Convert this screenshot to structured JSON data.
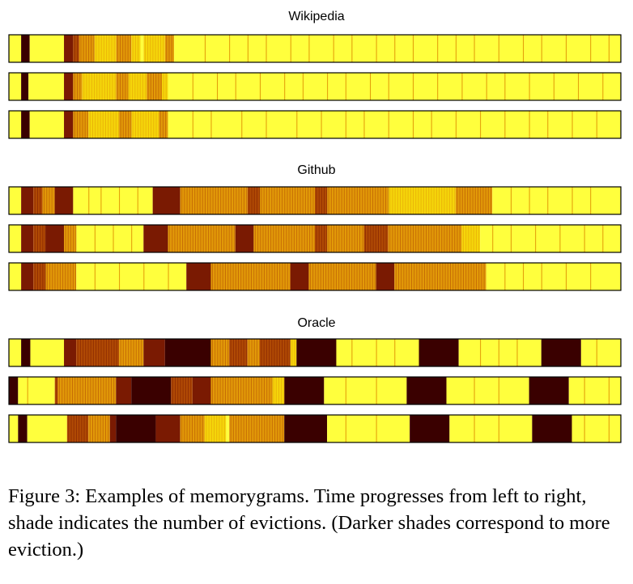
{
  "chart_data": {
    "type": "heatmap",
    "description_scale": "darker = more evictions",
    "color_scale": [
      "#ffff3d",
      "#f5d60a",
      "#e29a08",
      "#b04a04",
      "#7a1a02",
      "#3a0000"
    ],
    "groups": [
      {
        "title": "Wikipedia",
        "rows": [
          {
            "segments": [
              [
                0,
                0.02,
                0
              ],
              [
                0.02,
                0.034,
                5
              ],
              [
                0.034,
                0.09,
                0
              ],
              [
                0.09,
                0.105,
                4
              ],
              [
                0.105,
                0.115,
                3
              ],
              [
                0.115,
                0.14,
                2
              ],
              [
                0.14,
                0.175,
                1
              ],
              [
                0.175,
                0.2,
                2
              ],
              [
                0.2,
                0.215,
                1
              ],
              [
                0.215,
                0.22,
                0
              ],
              [
                0.22,
                0.255,
                1
              ],
              [
                0.255,
                0.27,
                2
              ],
              [
                0.27,
                0.27,
                0
              ],
              [
                0.27,
                1,
                0
              ]
            ],
            "stripes": [
              0.32,
              0.36,
              0.39,
              0.42,
              0.46,
              0.49,
              0.53,
              0.56,
              0.6,
              0.63,
              0.66,
              0.7,
              0.73,
              0.76,
              0.8,
              0.84,
              0.87,
              0.91,
              0.95,
              0.98
            ]
          },
          {
            "segments": [
              [
                0,
                0.02,
                0
              ],
              [
                0.02,
                0.032,
                5
              ],
              [
                0.032,
                0.09,
                0
              ],
              [
                0.09,
                0.105,
                4
              ],
              [
                0.105,
                0.12,
                2
              ],
              [
                0.12,
                0.175,
                1
              ],
              [
                0.175,
                0.195,
                2
              ],
              [
                0.195,
                0.225,
                1
              ],
              [
                0.225,
                0.25,
                2
              ],
              [
                0.25,
                0.26,
                1
              ],
              [
                0.26,
                1,
                0
              ]
            ],
            "stripes": [
              0.3,
              0.34,
              0.37,
              0.41,
              0.45,
              0.48,
              0.52,
              0.55,
              0.59,
              0.62,
              0.66,
              0.7,
              0.74,
              0.78,
              0.81,
              0.85,
              0.89,
              0.93,
              0.97
            ]
          },
          {
            "segments": [
              [
                0,
                0.02,
                0
              ],
              [
                0.02,
                0.034,
                5
              ],
              [
                0.034,
                0.09,
                0
              ],
              [
                0.09,
                0.105,
                4
              ],
              [
                0.105,
                0.13,
                2
              ],
              [
                0.13,
                0.18,
                1
              ],
              [
                0.18,
                0.2,
                2
              ],
              [
                0.2,
                0.245,
                1
              ],
              [
                0.245,
                0.26,
                2
              ],
              [
                0.26,
                1,
                0
              ]
            ],
            "stripes": [
              0.3,
              0.33,
              0.38,
              0.42,
              0.47,
              0.51,
              0.55,
              0.58,
              0.62,
              0.66,
              0.69,
              0.73,
              0.77,
              0.81,
              0.85,
              0.88,
              0.92,
              0.96
            ]
          }
        ]
      },
      {
        "title": "Github",
        "rows": [
          {
            "segments": [
              [
                0,
                0.02,
                0
              ],
              [
                0.02,
                0.04,
                4
              ],
              [
                0.04,
                0.055,
                3
              ],
              [
                0.055,
                0.075,
                2
              ],
              [
                0.075,
                0.105,
                4
              ],
              [
                0.105,
                0.235,
                0
              ],
              [
                0.235,
                0.28,
                4
              ],
              [
                0.28,
                0.39,
                2
              ],
              [
                0.39,
                0.41,
                3
              ],
              [
                0.41,
                0.5,
                2
              ],
              [
                0.5,
                0.52,
                3
              ],
              [
                0.52,
                0.62,
                2
              ],
              [
                0.62,
                0.73,
                1
              ],
              [
                0.73,
                0.79,
                2
              ],
              [
                0.79,
                1,
                0
              ]
            ],
            "stripes": [
              0.13,
              0.15,
              0.18,
              0.21,
              0.82,
              0.85,
              0.88,
              0.92,
              0.95
            ]
          },
          {
            "segments": [
              [
                0,
                0.02,
                0
              ],
              [
                0.02,
                0.04,
                4
              ],
              [
                0.04,
                0.06,
                3
              ],
              [
                0.06,
                0.09,
                4
              ],
              [
                0.09,
                0.11,
                2
              ],
              [
                0.11,
                0.22,
                0
              ],
              [
                0.22,
                0.26,
                4
              ],
              [
                0.26,
                0.37,
                2
              ],
              [
                0.37,
                0.4,
                4
              ],
              [
                0.4,
                0.5,
                2
              ],
              [
                0.5,
                0.52,
                3
              ],
              [
                0.52,
                0.58,
                2
              ],
              [
                0.58,
                0.62,
                3
              ],
              [
                0.62,
                0.74,
                2
              ],
              [
                0.74,
                0.77,
                1
              ],
              [
                0.77,
                1,
                0
              ]
            ],
            "stripes": [
              0.14,
              0.17,
              0.2,
              0.79,
              0.82,
              0.86,
              0.9,
              0.94,
              0.97
            ]
          },
          {
            "segments": [
              [
                0,
                0.02,
                0
              ],
              [
                0.02,
                0.04,
                4
              ],
              [
                0.04,
                0.06,
                3
              ],
              [
                0.06,
                0.11,
                2
              ],
              [
                0.11,
                0.29,
                0
              ],
              [
                0.29,
                0.33,
                4
              ],
              [
                0.33,
                0.46,
                2
              ],
              [
                0.46,
                0.49,
                4
              ],
              [
                0.49,
                0.6,
                2
              ],
              [
                0.6,
                0.63,
                4
              ],
              [
                0.63,
                0.78,
                2
              ],
              [
                0.78,
                1,
                0
              ]
            ],
            "stripes": [
              0.14,
              0.18,
              0.22,
              0.26,
              0.81,
              0.84,
              0.87,
              0.91,
              0.95
            ]
          }
        ]
      },
      {
        "title": "Oracle",
        "rows": [
          {
            "segments": [
              [
                0,
                0.02,
                0
              ],
              [
                0.02,
                0.035,
                5
              ],
              [
                0.035,
                0.09,
                0
              ],
              [
                0.09,
                0.11,
                4
              ],
              [
                0.11,
                0.18,
                3
              ],
              [
                0.18,
                0.22,
                2
              ],
              [
                0.22,
                0.255,
                4
              ],
              [
                0.255,
                0.33,
                5
              ],
              [
                0.33,
                0.36,
                2
              ],
              [
                0.36,
                0.39,
                3
              ],
              [
                0.39,
                0.41,
                2
              ],
              [
                0.41,
                0.46,
                3
              ],
              [
                0.46,
                0.47,
                1
              ],
              [
                0.47,
                0.535,
                5
              ],
              [
                0.535,
                0.67,
                0
              ],
              [
                0.67,
                0.735,
                5
              ],
              [
                0.735,
                0.87,
                0
              ],
              [
                0.87,
                0.935,
                5
              ],
              [
                0.935,
                1,
                0
              ]
            ],
            "stripes": [
              0.56,
              0.6,
              0.63,
              0.77,
              0.8,
              0.83,
              0.96
            ]
          },
          {
            "segments": [
              [
                0,
                0.015,
                5
              ],
              [
                0.015,
                0.075,
                0
              ],
              [
                0.075,
                0.08,
                3
              ],
              [
                0.08,
                0.175,
                2
              ],
              [
                0.175,
                0.2,
                4
              ],
              [
                0.2,
                0.265,
                5
              ],
              [
                0.265,
                0.3,
                3
              ],
              [
                0.3,
                0.33,
                4
              ],
              [
                0.33,
                0.43,
                2
              ],
              [
                0.43,
                0.45,
                1
              ],
              [
                0.45,
                0.515,
                5
              ],
              [
                0.515,
                0.65,
                0
              ],
              [
                0.65,
                0.715,
                5
              ],
              [
                0.715,
                0.85,
                0
              ],
              [
                0.85,
                0.915,
                5
              ],
              [
                0.915,
                1,
                0
              ]
            ],
            "stripes": [
              0.03,
              0.55,
              0.6,
              0.76,
              0.8,
              0.94,
              0.98
            ]
          },
          {
            "segments": [
              [
                0,
                0.015,
                0
              ],
              [
                0.015,
                0.03,
                5
              ],
              [
                0.03,
                0.095,
                0
              ],
              [
                0.095,
                0.13,
                3
              ],
              [
                0.13,
                0.165,
                2
              ],
              [
                0.165,
                0.175,
                4
              ],
              [
                0.175,
                0.24,
                5
              ],
              [
                0.24,
                0.28,
                4
              ],
              [
                0.28,
                0.32,
                2
              ],
              [
                0.32,
                0.355,
                1
              ],
              [
                0.355,
                0.36,
                0
              ],
              [
                0.36,
                0.45,
                2
              ],
              [
                0.45,
                0.52,
                5
              ],
              [
                0.52,
                0.655,
                0
              ],
              [
                0.655,
                0.72,
                5
              ],
              [
                0.72,
                0.855,
                0
              ],
              [
                0.855,
                0.92,
                5
              ],
              [
                0.92,
                1,
                0
              ]
            ],
            "stripes": [
              0.55,
              0.6,
              0.76,
              0.8,
              0.94,
              0.98
            ]
          }
        ]
      }
    ]
  },
  "caption": "Figure 3: Examples of memorygrams. Time progresses from left to right, shade indicates the number of evictions. (Darker shades correspond to more eviction.)"
}
